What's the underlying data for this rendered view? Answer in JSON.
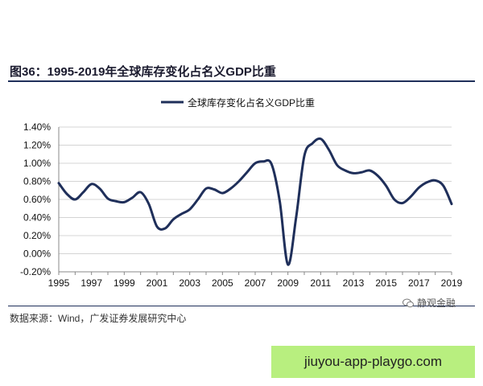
{
  "figure": {
    "title": "图36：1995-2019年全球库存变化占名义GDP比重",
    "source": "数据来源：Wind，广发证券发展研究中心",
    "watermark": "静观金融",
    "banner": "jiuyou-app-playgo.com"
  },
  "chart_data": {
    "type": "line",
    "title": "",
    "xlabel": "",
    "ylabel": "",
    "legend": [
      "全球库存变化占名义GDP比重"
    ],
    "ylim": [
      -0.2,
      1.4
    ],
    "xlim": [
      1995,
      2019
    ],
    "y_ticks": [
      "1.40%",
      "1.20%",
      "1.00%",
      "0.80%",
      "0.60%",
      "0.40%",
      "0.20%",
      "0.00%",
      "-0.20%"
    ],
    "y_tick_values": [
      1.4,
      1.2,
      1.0,
      0.8,
      0.6,
      0.4,
      0.2,
      0.0,
      -0.2
    ],
    "x_ticks": [
      "1995",
      "1997",
      "1999",
      "2001",
      "2003",
      "2005",
      "2007",
      "2009",
      "2011",
      "2013",
      "2015",
      "2017",
      "2019"
    ],
    "x_tick_values": [
      1995,
      1997,
      1999,
      2001,
      2003,
      2005,
      2007,
      2009,
      2011,
      2013,
      2015,
      2017,
      2019
    ],
    "series": [
      {
        "name": "全球库存变化占名义GDP比重",
        "color": "#1f2f5a",
        "x": [
          1995,
          1995.5,
          1996,
          1996.5,
          1997,
          1997.5,
          1998,
          1998.5,
          1999,
          1999.5,
          2000,
          2000.5,
          2001,
          2001.5,
          2002,
          2002.5,
          2003,
          2003.5,
          2004,
          2004.5,
          2005,
          2005.5,
          2006,
          2006.5,
          2007,
          2007.5,
          2008,
          2008.5,
          2009,
          2009.5,
          2010,
          2010.5,
          2011,
          2011.5,
          2012,
          2012.5,
          2013,
          2013.5,
          2014,
          2014.5,
          2015,
          2015.5,
          2016,
          2016.5,
          2017,
          2017.5,
          2018,
          2018.5,
          2019
        ],
        "values": [
          0.78,
          0.66,
          0.6,
          0.68,
          0.77,
          0.72,
          0.61,
          0.58,
          0.57,
          0.62,
          0.68,
          0.55,
          0.3,
          0.28,
          0.38,
          0.44,
          0.49,
          0.6,
          0.72,
          0.71,
          0.67,
          0.72,
          0.8,
          0.9,
          1.0,
          1.02,
          0.99,
          0.58,
          -0.12,
          0.4,
          1.08,
          1.22,
          1.27,
          1.15,
          0.98,
          0.92,
          0.89,
          0.9,
          0.92,
          0.86,
          0.75,
          0.6,
          0.56,
          0.63,
          0.73,
          0.79,
          0.81,
          0.75,
          0.55
        ]
      }
    ]
  }
}
